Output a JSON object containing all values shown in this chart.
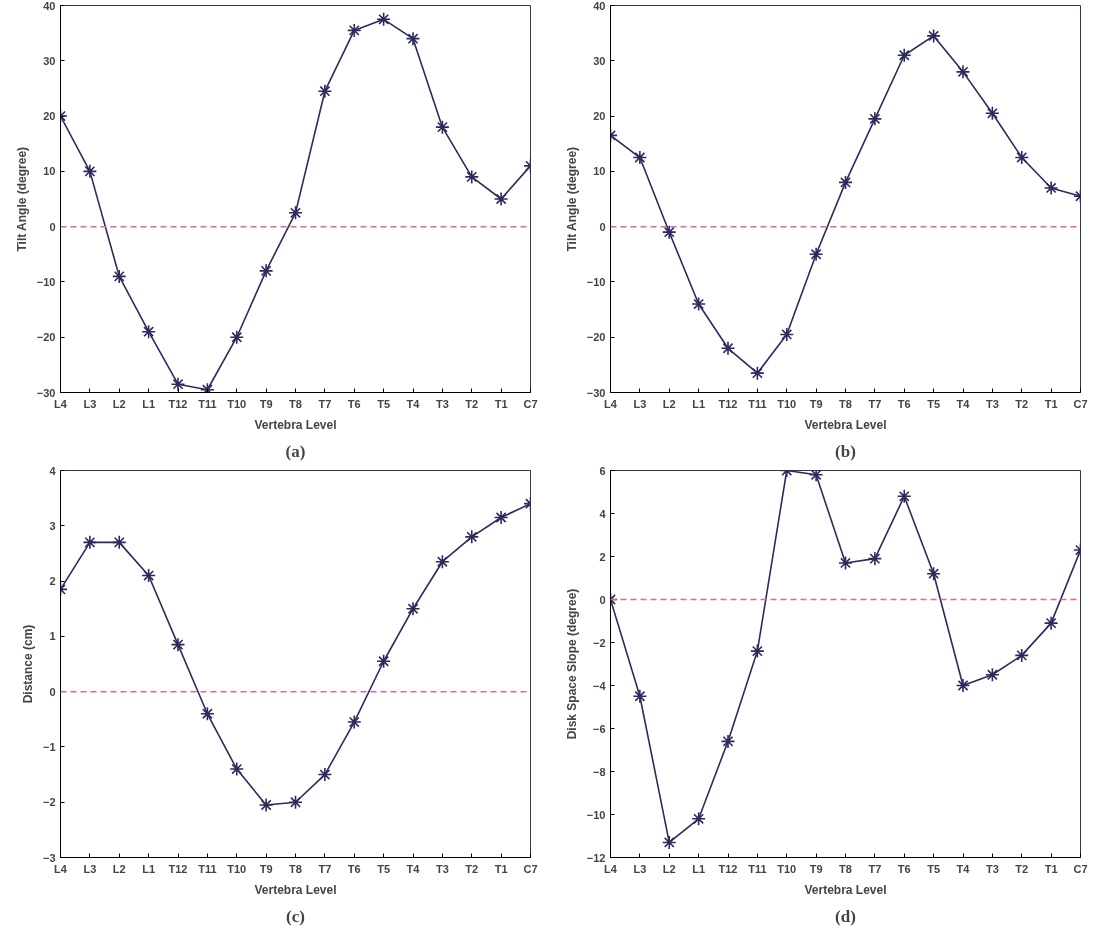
{
  "chart_data": [
    {
      "type": "line",
      "xlabel": "Vertebra Level",
      "ylabel": "Tilt Angle (degree)",
      "annotations": [
        "(a)"
      ],
      "categories": [
        "L4",
        "L3",
        "L2",
        "L1",
        "T12",
        "T11",
        "T10",
        "T9",
        "T8",
        "T7",
        "T6",
        "T5",
        "T4",
        "T3",
        "T2",
        "T1",
        "C7"
      ],
      "series": [
        {
          "color": "#2b2b5e",
          "values": [
            20,
            10,
            -9,
            -19,
            -28.5,
            -29.5,
            -20,
            -8,
            2.5,
            24.5,
            35.5,
            37.5,
            34,
            18,
            9,
            5,
            11
          ]
        }
      ],
      "ylim": [
        -30,
        40
      ],
      "yticks": [
        -30,
        -20,
        -10,
        0,
        10,
        20,
        30,
        40
      ],
      "grid": false,
      "marker": "cross",
      "line_style": "solid",
      "ref_lines": [
        {
          "axis": "y",
          "value": 0,
          "color": "#e06a8a",
          "line_style": "dashed"
        }
      ]
    },
    {
      "type": "line",
      "xlabel": "Vertebra Level",
      "ylabel": "Tilt Angle (degree)",
      "annotations": [
        "(b)"
      ],
      "categories": [
        "L4",
        "L3",
        "L2",
        "L1",
        "T12",
        "T11",
        "T10",
        "T9",
        "T8",
        "T7",
        "T6",
        "T5",
        "T4",
        "T3",
        "T2",
        "T1",
        "C7"
      ],
      "series": [
        {
          "color": "#2b2b5e",
          "values": [
            16.5,
            12.5,
            -1,
            -14,
            -22,
            -26.5,
            -19.5,
            -5,
            8,
            19.5,
            31,
            34.5,
            28,
            20.5,
            12.5,
            7,
            5.5
          ]
        }
      ],
      "ylim": [
        -30,
        40
      ],
      "yticks": [
        -30,
        -20,
        -10,
        0,
        10,
        20,
        30,
        40
      ],
      "grid": false,
      "marker": "cross",
      "line_style": "solid",
      "ref_lines": [
        {
          "axis": "y",
          "value": 0,
          "color": "#e06a8a",
          "line_style": "dashed"
        }
      ]
    },
    {
      "type": "line",
      "xlabel": "Vertebra Level",
      "ylabel": "Distance (cm)",
      "annotations": [
        "(c)"
      ],
      "categories": [
        "L4",
        "L3",
        "L2",
        "L1",
        "T12",
        "T11",
        "T10",
        "T9",
        "T8",
        "T7",
        "T6",
        "T5",
        "T4",
        "T3",
        "T2",
        "T1",
        "C7"
      ],
      "series": [
        {
          "color": "#2b2b5e",
          "values": [
            1.85,
            2.7,
            2.7,
            2.1,
            0.85,
            -0.4,
            -1.4,
            -2.05,
            -2.0,
            -1.5,
            -0.55,
            0.55,
            1.5,
            2.35,
            2.8,
            3.15,
            3.4
          ]
        }
      ],
      "ylim": [
        -3,
        4
      ],
      "yticks": [
        -3,
        -2,
        -1,
        0,
        1,
        2,
        3,
        4
      ],
      "grid": false,
      "marker": "cross",
      "line_style": "solid",
      "ref_lines": [
        {
          "axis": "y",
          "value": 0,
          "color": "#e06a8a",
          "line_style": "dashed"
        }
      ]
    },
    {
      "type": "line",
      "xlabel": "Vertebra Level",
      "ylabel": "Disk Space Slope (degree)",
      "annotations": [
        "(d)"
      ],
      "categories": [
        "L4",
        "L3",
        "L2",
        "L1",
        "T12",
        "T11",
        "T10",
        "T9",
        "T8",
        "T7",
        "T6",
        "T5",
        "T4",
        "T3",
        "T2",
        "T1",
        "C7"
      ],
      "series": [
        {
          "color": "#2b2b5e",
          "values": [
            0,
            -4.5,
            -11.3,
            -10.2,
            -6.6,
            -2.4,
            6,
            5.8,
            1.7,
            1.9,
            4.8,
            1.2,
            -4,
            -3.5,
            -2.6,
            -1.1,
            2.3
          ]
        }
      ],
      "ylim": [
        -12,
        6
      ],
      "yticks": [
        -12,
        -10,
        -8,
        -6,
        -4,
        -2,
        0,
        2,
        4,
        6
      ],
      "grid": false,
      "marker": "cross",
      "line_style": "solid",
      "ref_lines": [
        {
          "axis": "y",
          "value": 0,
          "color": "#e06a8a",
          "line_style": "dashed"
        }
      ]
    }
  ]
}
